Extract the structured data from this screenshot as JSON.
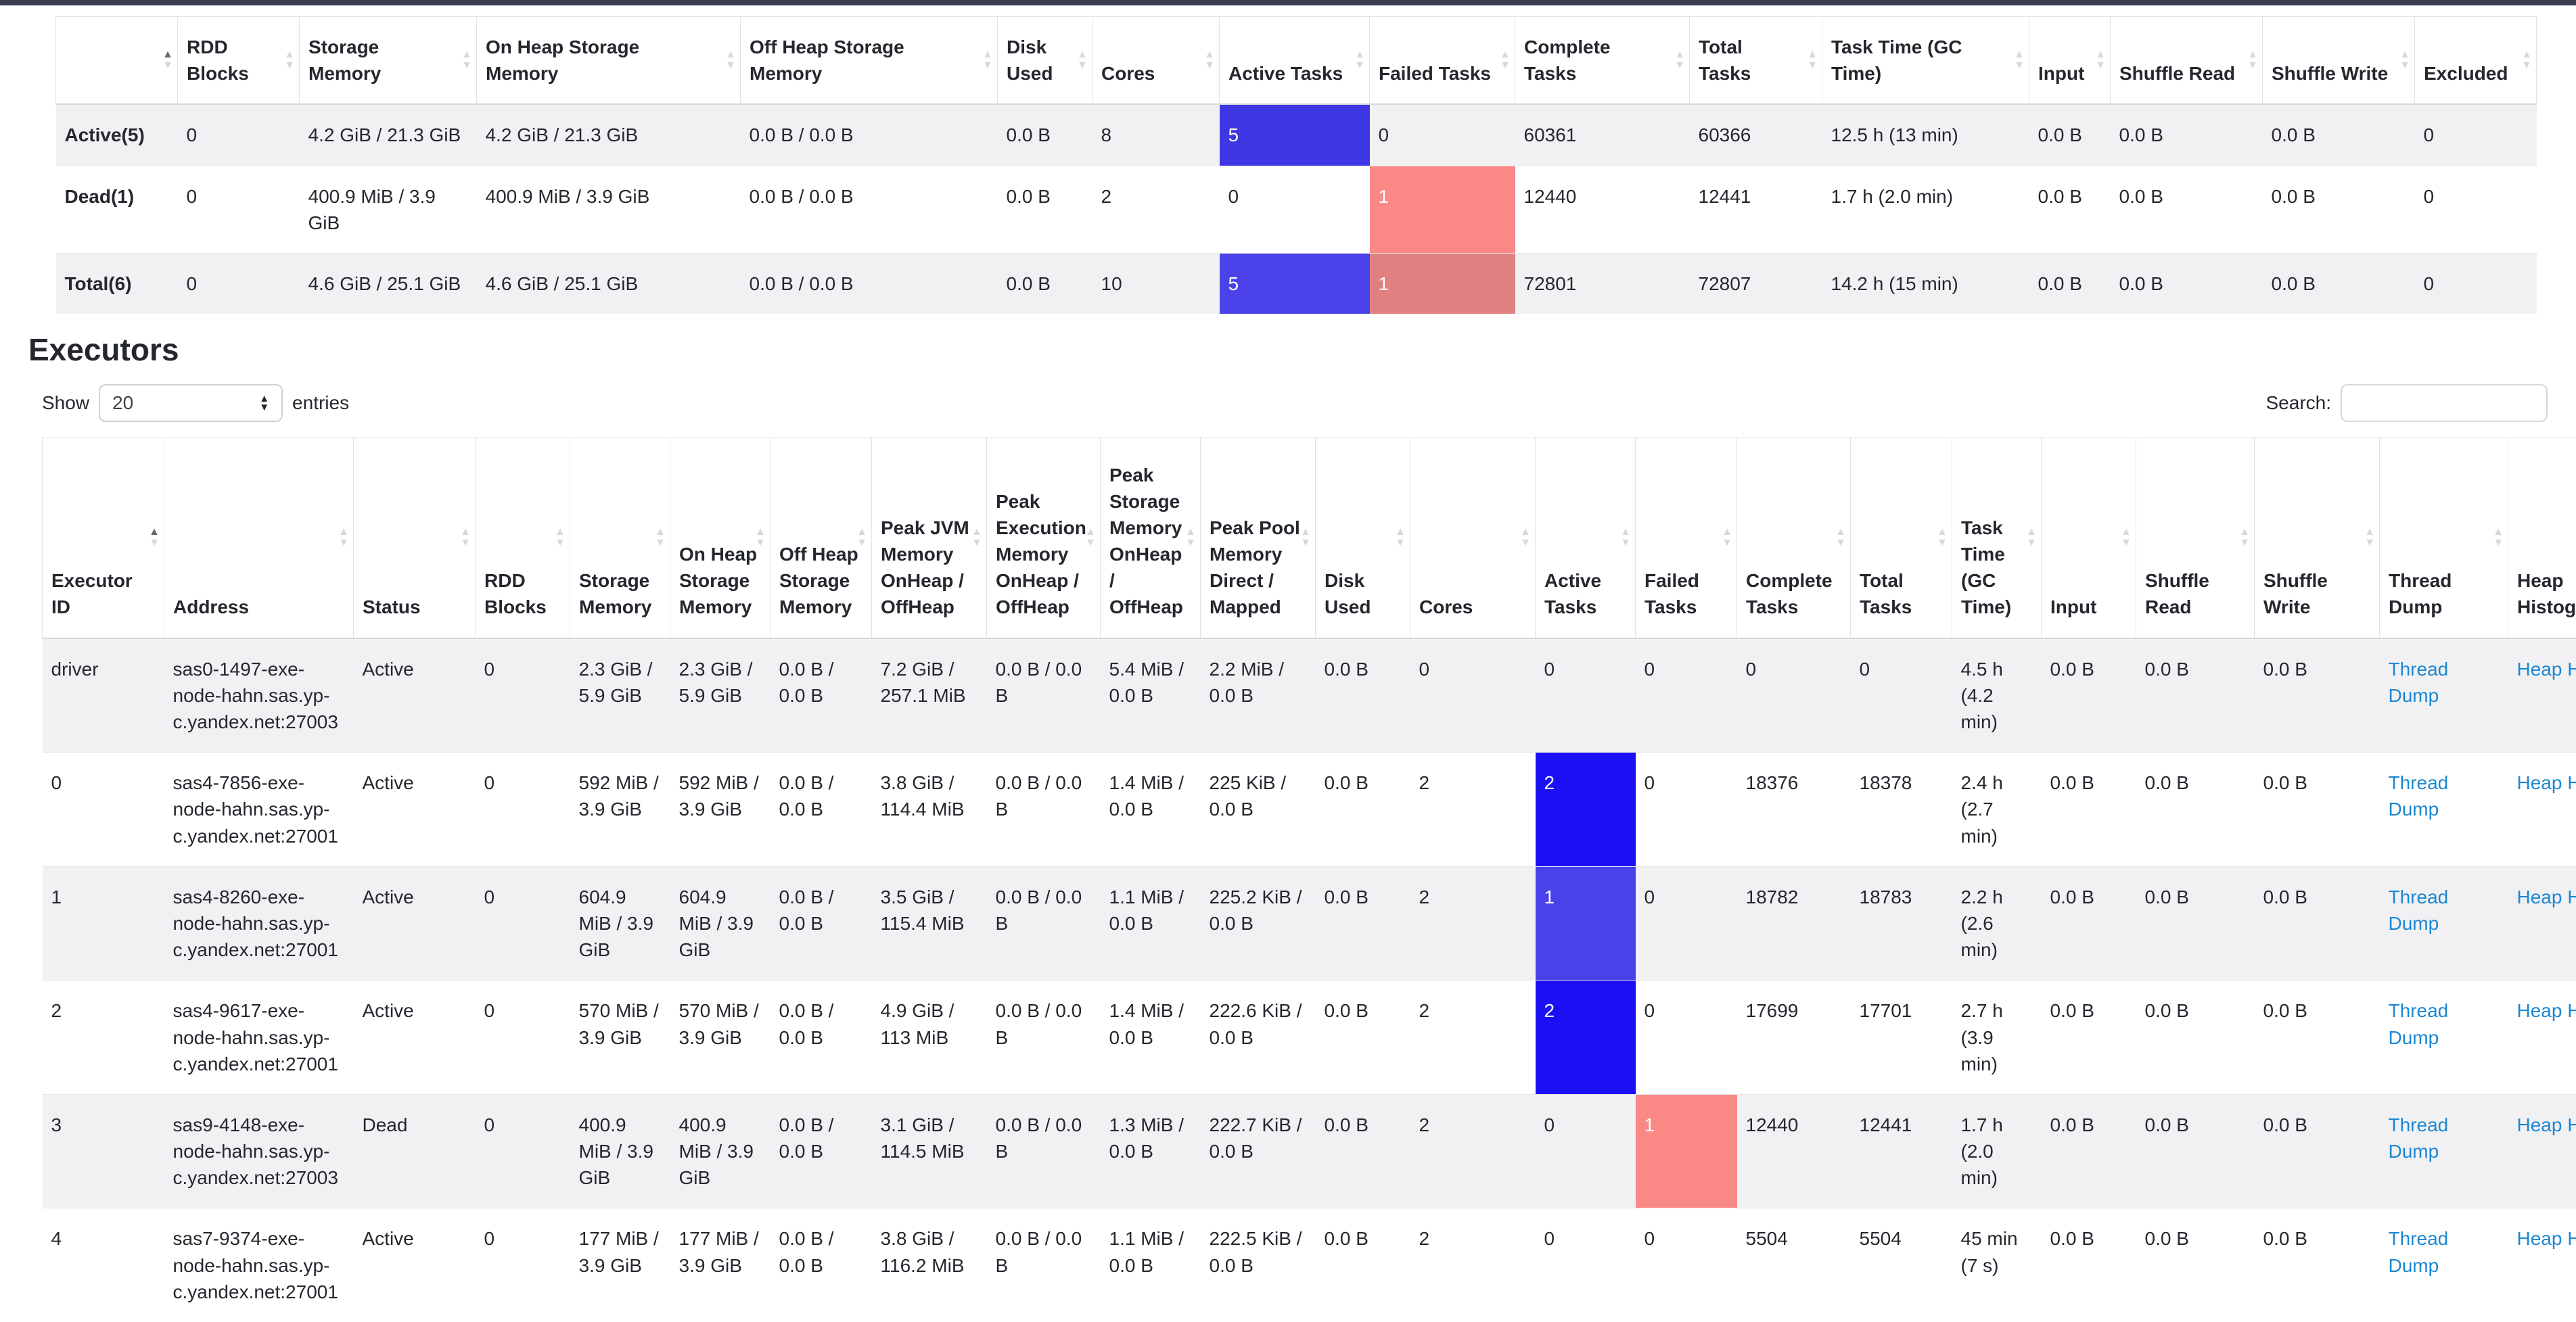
{
  "theme": {
    "navbar_color": "#3b3e51",
    "stripe_color": "#f1f1f3",
    "link_color": "#1c87d2",
    "active_blue_full": "#1b10f4",
    "active_blue_mid": "#4a42e9",
    "failed_red": "#fa8885"
  },
  "section": {
    "title": "Executors"
  },
  "controls": {
    "show": "Show",
    "page_size": "20",
    "entries": "entries",
    "search": "Search:",
    "search_value": ""
  },
  "summary": {
    "columns": [
      {
        "key": "row-label",
        "label": "",
        "sorted": "asc"
      },
      {
        "key": "rdd-blocks",
        "label": "RDD Blocks"
      },
      {
        "key": "storage-memory",
        "label": "Storage Memory"
      },
      {
        "key": "on-heap-storage-memory",
        "label": "On Heap Storage Memory"
      },
      {
        "key": "off-heap-storage-memory",
        "label": "Off Heap Storage Memory"
      },
      {
        "key": "disk-used",
        "label": "Disk Used"
      },
      {
        "key": "cores",
        "label": "Cores"
      },
      {
        "key": "active-tasks",
        "label": "Active Tasks"
      },
      {
        "key": "failed-tasks",
        "label": "Failed Tasks"
      },
      {
        "key": "complete-tasks",
        "label": "Complete Tasks"
      },
      {
        "key": "total-tasks",
        "label": "Total Tasks"
      },
      {
        "key": "task-time-gc-time",
        "label": "Task Time (GC Time)"
      },
      {
        "key": "input",
        "label": "Input"
      },
      {
        "key": "shuffle-read",
        "label": "Shuffle Read"
      },
      {
        "key": "shuffle-write",
        "label": "Shuffle Write"
      },
      {
        "key": "excluded",
        "label": "Excluded"
      }
    ],
    "rows": [
      {
        "label": "Active(5)",
        "cells": [
          {
            "t": "0"
          },
          {
            "t": "4.2 GiB / 21.3 GiB"
          },
          {
            "t": "4.2 GiB / 21.3 GiB"
          },
          {
            "t": "0.0 B / 0.0 B"
          },
          {
            "t": "0.0 B"
          },
          {
            "t": "8"
          },
          {
            "t": "5",
            "bg": "#3e37e3",
            "fg": "#ffffff"
          },
          {
            "t": "0"
          },
          {
            "t": "60361"
          },
          {
            "t": "60366"
          },
          {
            "t": "12.5 h (13 min)"
          },
          {
            "t": "0.0 B"
          },
          {
            "t": "0.0 B"
          },
          {
            "t": "0.0 B"
          },
          {
            "t": "0"
          }
        ]
      },
      {
        "label": "Dead(1)",
        "cells": [
          {
            "t": "0"
          },
          {
            "t": "400.9 MiB / 3.9 GiB"
          },
          {
            "t": "400.9 MiB / 3.9 GiB"
          },
          {
            "t": "0.0 B / 0.0 B"
          },
          {
            "t": "0.0 B"
          },
          {
            "t": "2"
          },
          {
            "t": "0"
          },
          {
            "t": "1",
            "bg": "#fa8885",
            "fg": "#ffffff"
          },
          {
            "t": "12440"
          },
          {
            "t": "12441"
          },
          {
            "t": "1.7 h (2.0 min)"
          },
          {
            "t": "0.0 B"
          },
          {
            "t": "0.0 B"
          },
          {
            "t": "0.0 B"
          },
          {
            "t": "0"
          }
        ]
      },
      {
        "label": "Total(6)",
        "cells": [
          {
            "t": "0"
          },
          {
            "t": "4.6 GiB / 25.1 GiB"
          },
          {
            "t": "4.6 GiB / 25.1 GiB"
          },
          {
            "t": "0.0 B / 0.0 B"
          },
          {
            "t": "0.0 B"
          },
          {
            "t": "10"
          },
          {
            "t": "5",
            "bg": "#4b43e9",
            "fg": "#ffffff"
          },
          {
            "t": "1",
            "bg": "#e08081",
            "fg": "#ffffff"
          },
          {
            "t": "72801"
          },
          {
            "t": "72807"
          },
          {
            "t": "14.2 h (15 min)"
          },
          {
            "t": "0.0 B"
          },
          {
            "t": "0.0 B"
          },
          {
            "t": "0.0 B"
          },
          {
            "t": "0"
          }
        ]
      }
    ]
  },
  "executors": {
    "columns": [
      {
        "key": "executor-id",
        "label": "Executor ID",
        "sorted": "asc"
      },
      {
        "key": "address",
        "label": "Address"
      },
      {
        "key": "status",
        "label": "Status"
      },
      {
        "key": "rdd-blocks",
        "label": "RDD Blocks"
      },
      {
        "key": "storage-memory",
        "label": "Storage Memory"
      },
      {
        "key": "on-heap-storage-memory",
        "label": "On Heap Storage Memory"
      },
      {
        "key": "off-heap-storage-memory",
        "label": "Off Heap Storage Memory"
      },
      {
        "key": "peak-jvm-memory",
        "label": "Peak JVM Memory OnHeap / OffHeap"
      },
      {
        "key": "peak-execution-memory",
        "label": "Peak Execution Memory OnHeap / OffHeap"
      },
      {
        "key": "peak-storage-memory",
        "label": "Peak Storage Memory OnHeap / OffHeap"
      },
      {
        "key": "peak-pool-memory",
        "label": "Peak Pool Memory Direct / Mapped"
      },
      {
        "key": "disk-used",
        "label": "Disk Used"
      },
      {
        "key": "cores",
        "label": "Cores"
      },
      {
        "key": "active-tasks",
        "label": "Active Tasks"
      },
      {
        "key": "failed-tasks",
        "label": "Failed Tasks"
      },
      {
        "key": "complete-tasks",
        "label": "Complete Tasks"
      },
      {
        "key": "total-tasks",
        "label": "Total Tasks"
      },
      {
        "key": "task-time-gc-time",
        "label": "Task Time (GC Time)"
      },
      {
        "key": "input",
        "label": "Input"
      },
      {
        "key": "shuffle-read",
        "label": "Shuffle Read"
      },
      {
        "key": "shuffle-write",
        "label": "Shuffle Write"
      },
      {
        "key": "thread-dump",
        "label": "Thread Dump"
      },
      {
        "key": "heap-histogram",
        "label": "Heap Histogram"
      }
    ],
    "rows": [
      {
        "cells": [
          {
            "t": "driver"
          },
          {
            "t": "sas0-1497-exe-node-hahn.sas.yp-c.yandex.net:27003"
          },
          {
            "t": "Active"
          },
          {
            "t": "0"
          },
          {
            "t": "2.3 GiB / 5.9 GiB"
          },
          {
            "t": "2.3 GiB / 5.9 GiB"
          },
          {
            "t": "0.0 B / 0.0 B"
          },
          {
            "t": "7.2 GiB / 257.1 MiB"
          },
          {
            "t": "0.0 B / 0.0 B"
          },
          {
            "t": "5.4 MiB / 0.0 B"
          },
          {
            "t": "2.2 MiB / 0.0 B"
          },
          {
            "t": "0.0 B"
          },
          {
            "t": "0"
          },
          {
            "t": "0"
          },
          {
            "t": "0"
          },
          {
            "t": "0"
          },
          {
            "t": "0"
          },
          {
            "t": "4.5 h (4.2 min)"
          },
          {
            "t": "0.0 B"
          },
          {
            "t": "0.0 B"
          },
          {
            "t": "0.0 B"
          },
          {
            "t": "Thread Dump",
            "link": true
          },
          {
            "t": "Heap Histogram",
            "link": true
          }
        ]
      },
      {
        "cells": [
          {
            "t": "0"
          },
          {
            "t": "sas4-7856-exe-node-hahn.sas.yp-c.yandex.net:27001"
          },
          {
            "t": "Active"
          },
          {
            "t": "0"
          },
          {
            "t": "592 MiB / 3.9 GiB"
          },
          {
            "t": "592 MiB / 3.9 GiB"
          },
          {
            "t": "0.0 B / 0.0 B"
          },
          {
            "t": "3.8 GiB / 114.4 MiB"
          },
          {
            "t": "0.0 B / 0.0 B"
          },
          {
            "t": "1.4 MiB / 0.0 B"
          },
          {
            "t": "225 KiB / 0.0 B"
          },
          {
            "t": "0.0 B"
          },
          {
            "t": "2"
          },
          {
            "t": "2",
            "bg": "#1b10f4",
            "fg": "#ffffff"
          },
          {
            "t": "0"
          },
          {
            "t": "18376"
          },
          {
            "t": "18378"
          },
          {
            "t": "2.4 h (2.7 min)"
          },
          {
            "t": "0.0 B"
          },
          {
            "t": "0.0 B"
          },
          {
            "t": "0.0 B"
          },
          {
            "t": "Thread Dump",
            "link": true
          },
          {
            "t": "Heap Histogram",
            "link": true
          }
        ]
      },
      {
        "cells": [
          {
            "t": "1"
          },
          {
            "t": "sas4-8260-exe-node-hahn.sas.yp-c.yandex.net:27001"
          },
          {
            "t": "Active"
          },
          {
            "t": "0"
          },
          {
            "t": "604.9 MiB / 3.9 GiB"
          },
          {
            "t": "604.9 MiB / 3.9 GiB"
          },
          {
            "t": "0.0 B / 0.0 B"
          },
          {
            "t": "3.5 GiB / 115.4 MiB"
          },
          {
            "t": "0.0 B / 0.0 B"
          },
          {
            "t": "1.1 MiB / 0.0 B"
          },
          {
            "t": "225.2 KiB / 0.0 B"
          },
          {
            "t": "0.0 B"
          },
          {
            "t": "2"
          },
          {
            "t": "1",
            "bg": "#4a42e9",
            "fg": "#ffffff"
          },
          {
            "t": "0"
          },
          {
            "t": "18782"
          },
          {
            "t": "18783"
          },
          {
            "t": "2.2 h (2.6 min)"
          },
          {
            "t": "0.0 B"
          },
          {
            "t": "0.0 B"
          },
          {
            "t": "0.0 B"
          },
          {
            "t": "Thread Dump",
            "link": true
          },
          {
            "t": "Heap Histogram",
            "link": true
          }
        ]
      },
      {
        "cells": [
          {
            "t": "2"
          },
          {
            "t": "sas4-9617-exe-node-hahn.sas.yp-c.yandex.net:27001"
          },
          {
            "t": "Active"
          },
          {
            "t": "0"
          },
          {
            "t": "570 MiB / 3.9 GiB"
          },
          {
            "t": "570 MiB / 3.9 GiB"
          },
          {
            "t": "0.0 B / 0.0 B"
          },
          {
            "t": "4.9 GiB / 113 MiB"
          },
          {
            "t": "0.0 B / 0.0 B"
          },
          {
            "t": "1.4 MiB / 0.0 B"
          },
          {
            "t": "222.6 KiB / 0.0 B"
          },
          {
            "t": "0.0 B"
          },
          {
            "t": "2"
          },
          {
            "t": "2",
            "bg": "#1b10f4",
            "fg": "#ffffff"
          },
          {
            "t": "0"
          },
          {
            "t": "17699"
          },
          {
            "t": "17701"
          },
          {
            "t": "2.7 h (3.9 min)"
          },
          {
            "t": "0.0 B"
          },
          {
            "t": "0.0 B"
          },
          {
            "t": "0.0 B"
          },
          {
            "t": "Thread Dump",
            "link": true
          },
          {
            "t": "Heap Histogram",
            "link": true
          }
        ]
      },
      {
        "cells": [
          {
            "t": "3"
          },
          {
            "t": "sas9-4148-exe-node-hahn.sas.yp-c.yandex.net:27003"
          },
          {
            "t": "Dead"
          },
          {
            "t": "0"
          },
          {
            "t": "400.9 MiB / 3.9 GiB"
          },
          {
            "t": "400.9 MiB / 3.9 GiB"
          },
          {
            "t": "0.0 B / 0.0 B"
          },
          {
            "t": "3.1 GiB / 114.5 MiB"
          },
          {
            "t": "0.0 B / 0.0 B"
          },
          {
            "t": "1.3 MiB / 0.0 B"
          },
          {
            "t": "222.7 KiB / 0.0 B"
          },
          {
            "t": "0.0 B"
          },
          {
            "t": "2"
          },
          {
            "t": "0"
          },
          {
            "t": "1",
            "bg": "#fa8885",
            "fg": "#ffffff"
          },
          {
            "t": "12440"
          },
          {
            "t": "12441"
          },
          {
            "t": "1.7 h (2.0 min)"
          },
          {
            "t": "0.0 B"
          },
          {
            "t": "0.0 B"
          },
          {
            "t": "0.0 B"
          },
          {
            "t": "Thread Dump",
            "link": true
          },
          {
            "t": "Heap Histogram",
            "link": true
          }
        ]
      },
      {
        "cells": [
          {
            "t": "4"
          },
          {
            "t": "sas7-9374-exe-node-hahn.sas.yp-c.yandex.net:27001"
          },
          {
            "t": "Active"
          },
          {
            "t": "0"
          },
          {
            "t": "177 MiB / 3.9 GiB"
          },
          {
            "t": "177 MiB / 3.9 GiB"
          },
          {
            "t": "0.0 B / 0.0 B"
          },
          {
            "t": "3.8 GiB / 116.2 MiB"
          },
          {
            "t": "0.0 B / 0.0 B"
          },
          {
            "t": "1.1 MiB / 0.0 B"
          },
          {
            "t": "222.5 KiB / 0.0 B"
          },
          {
            "t": "0.0 B"
          },
          {
            "t": "2"
          },
          {
            "t": "0"
          },
          {
            "t": "0"
          },
          {
            "t": "5504"
          },
          {
            "t": "5504"
          },
          {
            "t": "45 min (7 s)"
          },
          {
            "t": "0.0 B"
          },
          {
            "t": "0.0 B"
          },
          {
            "t": "0.0 B"
          },
          {
            "t": "Thread Dump",
            "link": true
          },
          {
            "t": "Heap Histogram",
            "link": true
          }
        ]
      }
    ]
  }
}
